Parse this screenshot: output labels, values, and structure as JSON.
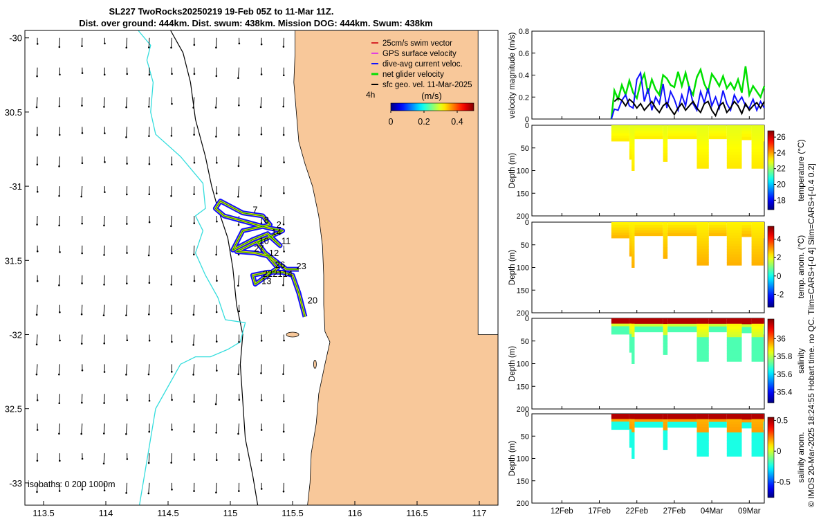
{
  "title": {
    "line1": "SL227 TwoRocks20250219 19-Feb 05Z to 11-Mar 11Z.",
    "line2": "Dist. over ground: 444km. Dist. swum: 438km. Mission DOG: 444km. Swum: 438km"
  },
  "credit": "© IMOS 20-Mar-2025 18:24:55 Hobart time. no QC. Tlim=CARS+[-0 4] Slim=CARS+[-0.4 0.2]",
  "colors": {
    "land": "#f8c89a",
    "swim_vector": "#d62728",
    "gps_velocity": "#e040e0",
    "dive_avg": "#1010ff",
    "net_glider": "#00e000",
    "sfc_geo": "#000000",
    "isobath_200": "#000000",
    "isobath_1000": "#33dddd"
  },
  "chart_data": [
    {
      "type": "map",
      "name": "glider-track-map",
      "xlim": [
        113.35,
        117.15
      ],
      "ylim": [
        -33.15,
        -29.95
      ],
      "x_ticks": [
        113.5,
        114,
        114.5,
        115,
        115.5,
        116,
        116.5,
        117
      ],
      "x_tick_labels": [
        "113.5",
        "114",
        "114.5",
        "115",
        "115.5",
        "116",
        "116.5",
        "117"
      ],
      "y_ticks": [
        -30,
        -30.5,
        -31,
        -31.5,
        -32,
        -32.5,
        -33
      ],
      "y_tick_labels": [
        "-30",
        "30.5",
        "-31",
        "31.5",
        "-32",
        "32.5",
        "-33"
      ],
      "legend": {
        "placement": "top-right",
        "entries": [
          "25cm/s swim vector",
          "GPS surface velocity",
          "dive-avg current veloc.",
          "net glider velocity",
          "sfc geo. vel. 11-Mar-2025"
        ],
        "interval_label": "4h"
      },
      "colorbar": {
        "label": "(m/s)",
        "ticks": [
          "0",
          "0.2",
          "0.4"
        ],
        "range": [
          0,
          0.5
        ]
      },
      "isobath_label": "isobaths: 0   200  1000m",
      "day_labels": [
        {
          "text": "7",
          "lon": 115.18,
          "lat": -31.18
        },
        {
          "text": "8",
          "lon": 115.27,
          "lat": -31.25
        },
        {
          "text": "2",
          "lon": 115.37,
          "lat": -31.28
        },
        {
          "text": "14",
          "lon": 115.33,
          "lat": -31.33
        },
        {
          "text": "11",
          "lon": 115.41,
          "lat": -31.39
        },
        {
          "text": "10",
          "lon": 115.23,
          "lat": -31.39
        },
        {
          "text": "27",
          "lon": 115.19,
          "lat": -31.44
        },
        {
          "text": "12",
          "lon": 115.31,
          "lat": -31.47
        },
        {
          "text": "26",
          "lon": 115.36,
          "lat": -31.55
        },
        {
          "text": "23",
          "lon": 115.53,
          "lat": -31.56
        },
        {
          "text": "22",
          "lon": 115.26,
          "lat": -31.61
        },
        {
          "text": "21",
          "lon": 115.34,
          "lat": -31.61
        },
        {
          "text": "14",
          "lon": 115.42,
          "lat": -31.61
        },
        {
          "text": "13",
          "lon": 115.25,
          "lat": -31.66
        },
        {
          "text": "20",
          "lon": 115.62,
          "lat": -31.79
        }
      ]
    },
    {
      "type": "line",
      "name": "velocity-magnitude",
      "ylabel": "velocity magnitude (m/s)",
      "ylim": [
        0,
        0.8
      ],
      "y_ticks": [
        0,
        0.2,
        0.4,
        0.6,
        0.8
      ],
      "y_tick_labels": [
        "0",
        "0.2",
        "0.4",
        "0.6",
        "0.8"
      ],
      "xlim": [
        0,
        31
      ],
      "series": [
        {
          "name": "net glider velocity",
          "color": "#00e000",
          "x": [
            10.6,
            11.0,
            11.5,
            12.0,
            12.5,
            13.0,
            13.5,
            14.0,
            14.5,
            15.0,
            15.5,
            16.0,
            16.5,
            17.0,
            17.5,
            18.0,
            18.5,
            19.0,
            19.5,
            20.0,
            20.5,
            21.0,
            21.5,
            22.0,
            22.5,
            23.0,
            23.5,
            24.0,
            24.5,
            25.0,
            25.5,
            26.0,
            26.5,
            27.0,
            27.5,
            28.0,
            28.5,
            29.0,
            29.5,
            30.0,
            30.5,
            31.0
          ],
          "values": [
            0.0,
            0.26,
            0.18,
            0.31,
            0.22,
            0.35,
            0.24,
            0.19,
            0.33,
            0.41,
            0.23,
            0.36,
            0.27,
            0.22,
            0.4,
            0.37,
            0.31,
            0.29,
            0.43,
            0.3,
            0.42,
            0.28,
            0.22,
            0.38,
            0.45,
            0.32,
            0.25,
            0.41,
            0.36,
            0.3,
            0.39,
            0.28,
            0.33,
            0.27,
            0.36,
            0.24,
            0.48,
            0.22,
            0.3,
            0.25,
            0.2,
            0.3
          ]
        },
        {
          "name": "dive-avg current veloc.",
          "color": "#1010ff",
          "x": [
            10.6,
            11.0,
            11.5,
            12.0,
            12.5,
            13.0,
            13.5,
            14.0,
            14.5,
            15.0,
            15.5,
            16.0,
            16.5,
            17.0,
            17.5,
            18.0,
            18.5,
            19.0,
            19.5,
            20.0,
            20.5,
            21.0,
            21.5,
            22.0,
            22.5,
            23.0,
            23.5,
            24.0,
            24.5,
            25.0,
            25.5,
            26.0,
            26.5,
            27.0,
            27.5,
            28.0,
            28.5,
            29.0,
            29.5,
            30.0,
            30.5,
            31.0
          ],
          "values": [
            0.0,
            0.09,
            0.08,
            0.17,
            0.22,
            0.12,
            0.1,
            0.36,
            0.42,
            0.16,
            0.28,
            0.08,
            0.2,
            0.14,
            0.32,
            0.1,
            0.25,
            0.18,
            0.08,
            0.22,
            0.12,
            0.3,
            0.14,
            0.08,
            0.25,
            0.15,
            0.28,
            0.12,
            0.2,
            0.1,
            0.26,
            0.14,
            0.08,
            0.22,
            0.15,
            0.2,
            0.12,
            0.1,
            0.18,
            0.08,
            0.16,
            0.1
          ]
        },
        {
          "name": "sfc geo. vel.",
          "color": "#000000",
          "x": [
            11.0,
            11.5,
            12.0,
            12.5,
            13.0,
            13.5,
            14.0,
            14.5,
            15.0,
            15.5,
            16.0,
            16.5,
            17.0,
            17.5,
            18.0,
            18.5,
            19.0,
            19.5,
            20.0,
            20.5,
            21.0,
            21.5,
            22.0,
            22.5,
            23.0,
            23.5,
            24.0,
            24.5,
            25.0,
            25.5,
            26.0,
            26.5,
            27.0,
            27.5,
            28.0,
            28.5,
            29.0,
            29.5,
            30.0,
            30.5,
            31.0
          ],
          "values": [
            0.16,
            0.19,
            0.17,
            0.12,
            0.18,
            0.15,
            0.1,
            0.14,
            0.08,
            0.12,
            0.16,
            0.1,
            0.06,
            0.12,
            0.15,
            0.09,
            0.04,
            0.1,
            0.14,
            0.08,
            0.12,
            0.16,
            0.1,
            0.06,
            0.14,
            0.16,
            0.08,
            0.03,
            0.12,
            0.15,
            0.06,
            0.1,
            0.16,
            0.12,
            0.05,
            0.14,
            0.08,
            0.12,
            0.15,
            0.1,
            0.16
          ]
        }
      ]
    },
    {
      "type": "heatmap",
      "name": "temperature-section",
      "ylabel": "Depth (m)",
      "ylim": [
        0,
        200
      ],
      "y_ticks": [
        0,
        50,
        100,
        150,
        200
      ],
      "y_tick_labels": [
        "0",
        "50",
        "100",
        "150",
        "200"
      ],
      "colorbar_label": "temperature (°C)",
      "colorbar_ticks": [
        18,
        20,
        22,
        24,
        26
      ],
      "colorbar_tick_labels": [
        "18",
        "20",
        "22",
        "24",
        "26"
      ],
      "colorbar_range": [
        16.8,
        26.8
      ],
      "dominant_values": [
        22.8,
        23.3
      ]
    },
    {
      "type": "heatmap",
      "name": "temperature-anomaly-section",
      "ylabel": "Depth (m)",
      "ylim": [
        0,
        200
      ],
      "y_ticks": [
        0,
        50,
        100,
        150,
        200
      ],
      "y_tick_labels": [
        "0",
        "50",
        "100",
        "150",
        "200"
      ],
      "colorbar_label": "temp. anom. (°C)",
      "colorbar_ticks": [
        -2,
        0,
        2,
        4
      ],
      "colorbar_tick_labels": [
        "-2",
        "0",
        "2",
        "4"
      ],
      "colorbar_range": [
        -3.4,
        5.4
      ],
      "dominant_values": [
        2.2,
        2.8
      ]
    },
    {
      "type": "heatmap",
      "name": "salinity-section",
      "ylabel": "Depth (m)",
      "ylim": [
        0,
        200
      ],
      "y_ticks": [
        0,
        50,
        100,
        150,
        200
      ],
      "y_tick_labels": [
        "0",
        "50",
        "100",
        "150",
        "200"
      ],
      "colorbar_label": "salinity",
      "colorbar_ticks": [
        35.4,
        35.6,
        35.8,
        36
      ],
      "colorbar_tick_labels": [
        "35.4",
        "35.6",
        "35.8",
        "36"
      ],
      "colorbar_range": [
        35.28,
        36.22
      ],
      "dominant_values": [
        35.9,
        35.7
      ]
    },
    {
      "type": "heatmap",
      "name": "salinity-anomaly-section",
      "ylabel": "Depth (m)",
      "ylim": [
        0,
        200
      ],
      "y_ticks": [
        0,
        50,
        100,
        150,
        200
      ],
      "y_tick_labels": [
        "0",
        "50",
        "100",
        "150",
        "200"
      ],
      "colorbar_label": "salinity anom.",
      "colorbar_ticks": [
        -0.5,
        0,
        0.5
      ],
      "colorbar_tick_labels": [
        "-0.5",
        "0",
        "0.5"
      ],
      "colorbar_range": [
        -0.75,
        0.55
      ],
      "dominant_values": [
        0.15,
        0.25
      ],
      "x_ticks": [
        4,
        9,
        14,
        19,
        24,
        29
      ],
      "x_tick_labels": [
        "12Feb",
        "17Feb",
        "22Feb",
        "27Feb",
        "04Mar",
        "09Mar"
      ]
    }
  ]
}
